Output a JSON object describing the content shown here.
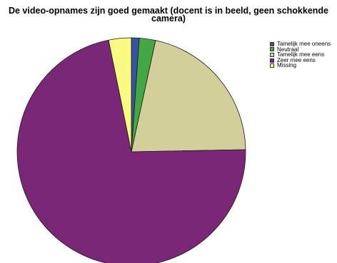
{
  "chart_data": {
    "type": "pie",
    "title_lines": [
      "De video-opnames zijn goed gemaakt (docent is in beeld, geen schokkende",
      "camera)"
    ],
    "legend_position": "top-right",
    "slices": [
      {
        "label": "Tamelijk mee oneens",
        "value": 1.1,
        "color": "#3952a3"
      },
      {
        "label": "Neutraal",
        "value": 2.3,
        "color": "#43a843"
      },
      {
        "label": "Tamelijk mee eens",
        "value": 21.3,
        "color": "#d3cf9a"
      },
      {
        "label": "Zeer mee eens",
        "value": 72.1,
        "color": "#7b2778"
      },
      {
        "label": "Missing",
        "value": 3.2,
        "color": "#fafa82"
      }
    ]
  }
}
